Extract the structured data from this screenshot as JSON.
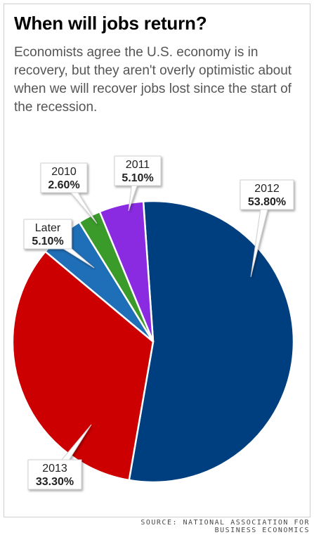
{
  "header": {
    "title": "When will jobs return?",
    "subtitle": "Economists agree the U.S. economy is in recovery, but they aren't overly optimistic about when we will recover jobs lost since the start of the recession."
  },
  "source": {
    "line1": "SOURCE: NATIONAL ASSOCIATION FOR",
    "line2": "BUSINESS ECONOMICS"
  },
  "colors": {
    "2012": "#003f7f",
    "2013": "#cc0000",
    "Later": "#1f6fb8",
    "2010": "#3a9a2a",
    "2011": "#8a2be2"
  },
  "chart_data": {
    "type": "pie",
    "title": "When will jobs return?",
    "slices": [
      {
        "label": "2012",
        "pct_label": "53.80%",
        "value": 53.8,
        "color": "#003f7f"
      },
      {
        "label": "2013",
        "pct_label": "33.30%",
        "value": 33.3,
        "color": "#cc0000"
      },
      {
        "label": "Later",
        "pct_label": "5.10%",
        "value": 5.1,
        "color": "#1f6fb8"
      },
      {
        "label": "2010",
        "pct_label": "2.60%",
        "value": 2.6,
        "color": "#3a9a2a"
      },
      {
        "label": "2011",
        "pct_label": "5.10%",
        "value": 5.1,
        "color": "#8a2be2"
      }
    ],
    "legend": "none",
    "grid": false
  }
}
